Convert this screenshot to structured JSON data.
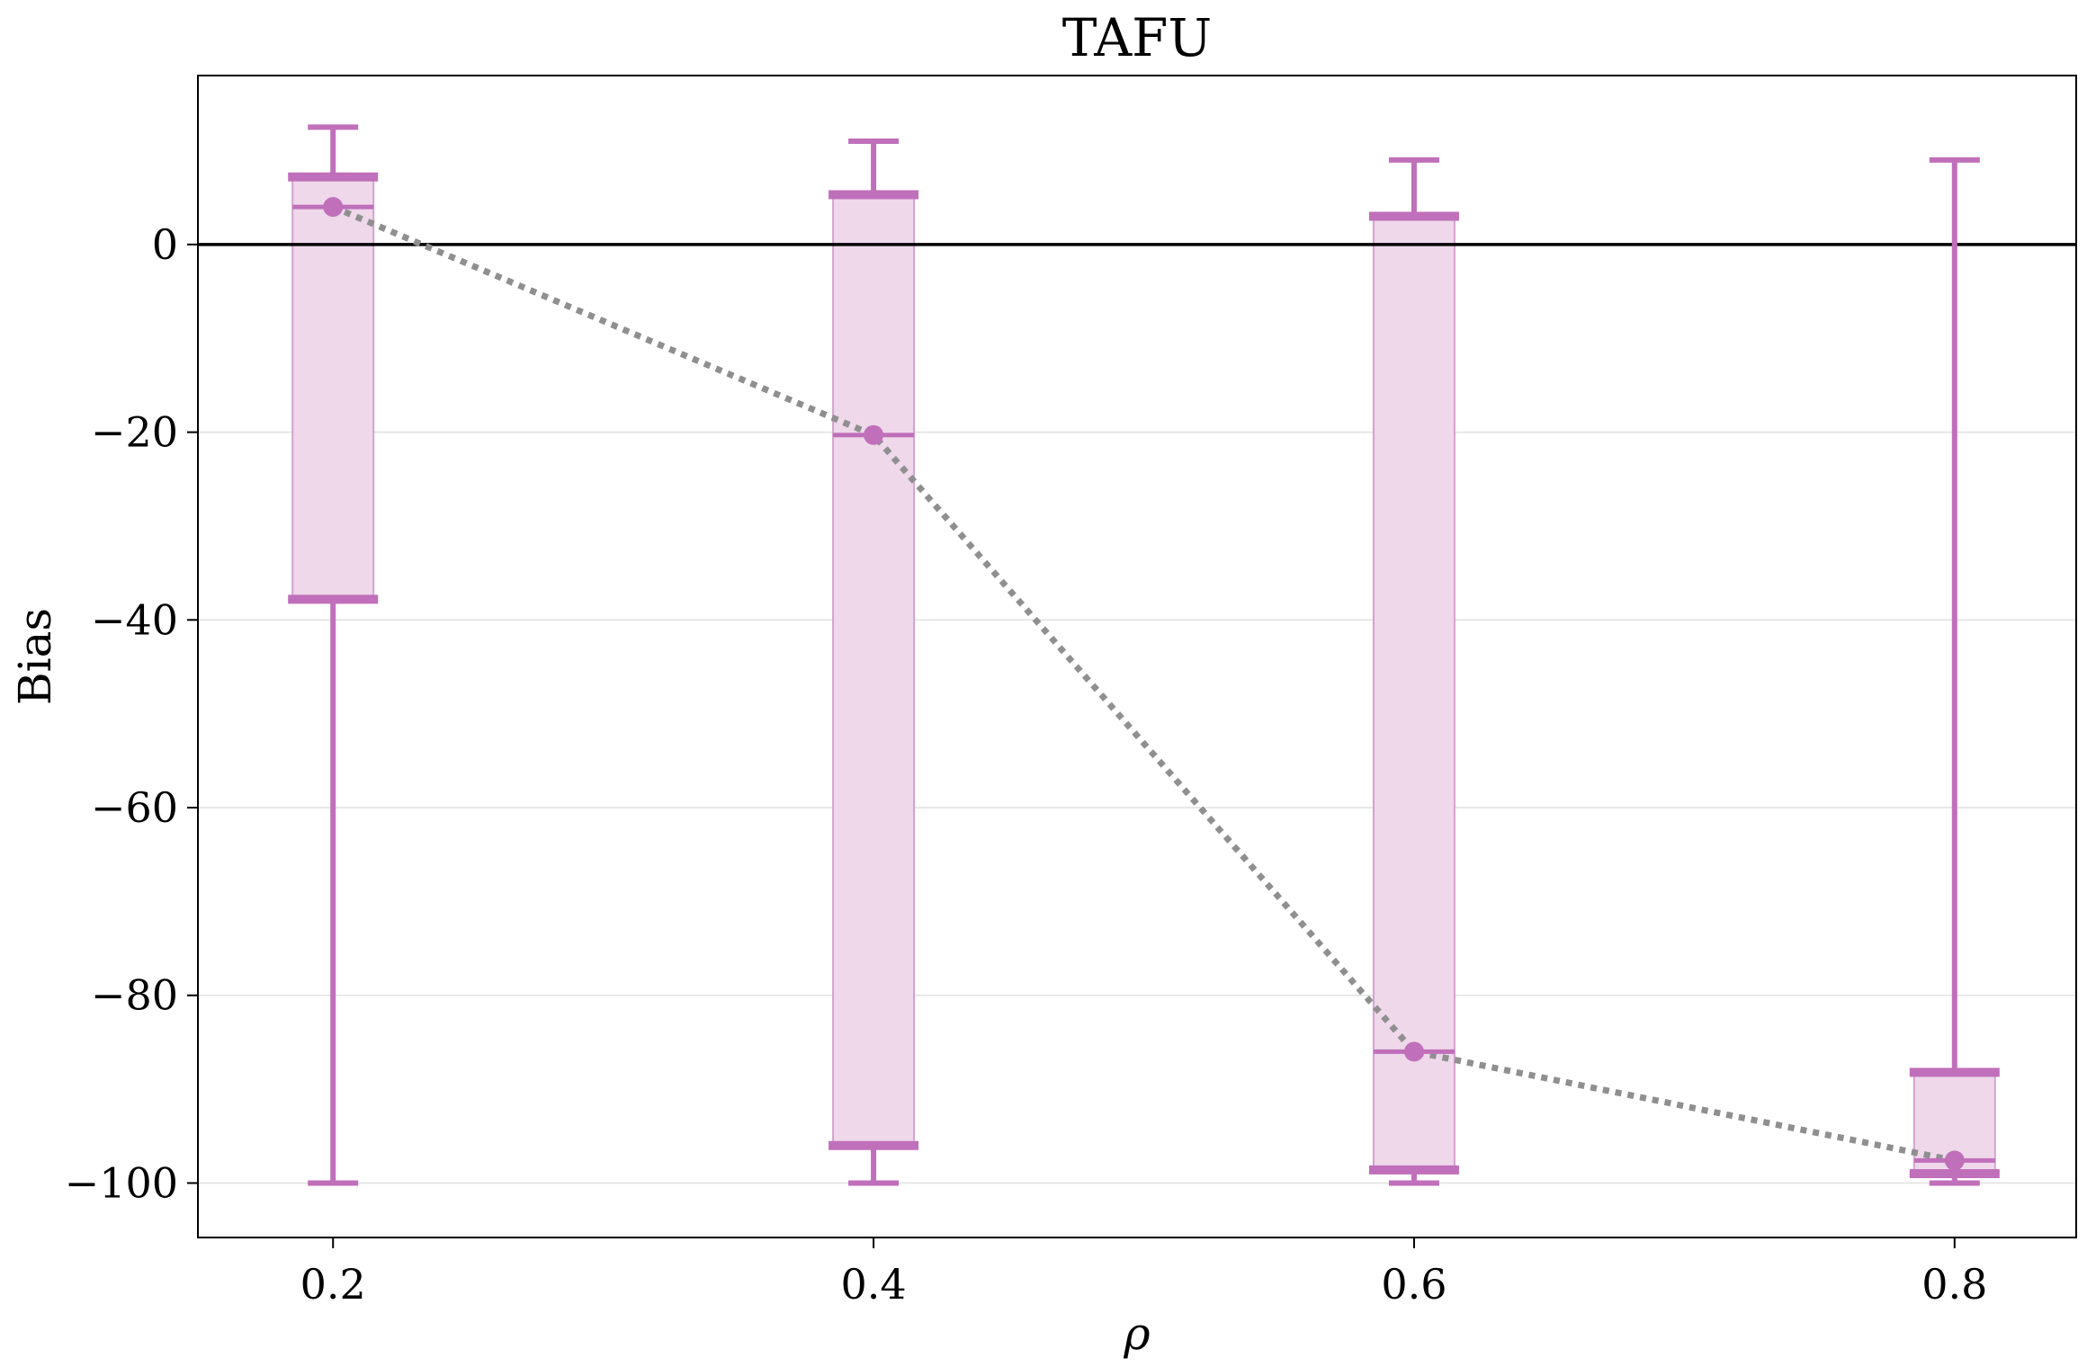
{
  "chart_data": {
    "type": "box",
    "title": "TAFU",
    "xlabel": "ρ",
    "ylabel": "Bias",
    "x": [
      0.2,
      0.4,
      0.6,
      0.8
    ],
    "x_tick_labels": [
      "0.2",
      "0.4",
      "0.6",
      "0.8"
    ],
    "xlim": [
      0.15,
      0.845
    ],
    "ylim": [
      -105.8,
      18
    ],
    "y_ticks": [
      0,
      -20,
      -40,
      -60,
      -80,
      -100
    ],
    "y_tick_labels": [
      "0",
      "−20",
      "−40",
      "−60",
      "−80",
      "−100"
    ],
    "grid": "horizontal",
    "reference_line": 0,
    "boxes": [
      {
        "x": 0.2,
        "whisker_low": -100,
        "q1": -37.8,
        "median": 4.0,
        "q3": 7.2,
        "whisker_high": 12.5,
        "mean": 4.0
      },
      {
        "x": 0.4,
        "whisker_low": -100,
        "q1": -96.0,
        "median": -20.3,
        "q3": 5.3,
        "whisker_high": 11.0,
        "mean": -20.3
      },
      {
        "x": 0.6,
        "whisker_low": -100,
        "q1": -98.6,
        "median": -86.0,
        "q3": 3.0,
        "whisker_high": 9.0,
        "mean": -86.0
      },
      {
        "x": 0.8,
        "whisker_low": -100,
        "q1": -99.0,
        "median": -97.6,
        "q3": -88.2,
        "whisker_high": 9.0,
        "mean": -97.6
      }
    ],
    "colors": {
      "box_fill": "#eed8ea",
      "box_edge": "#d4a2cf",
      "whisker": "#c06fba",
      "mean_line": "#8f8f8f",
      "reference_line": "#000000",
      "grid": "#e2e2e2"
    }
  }
}
